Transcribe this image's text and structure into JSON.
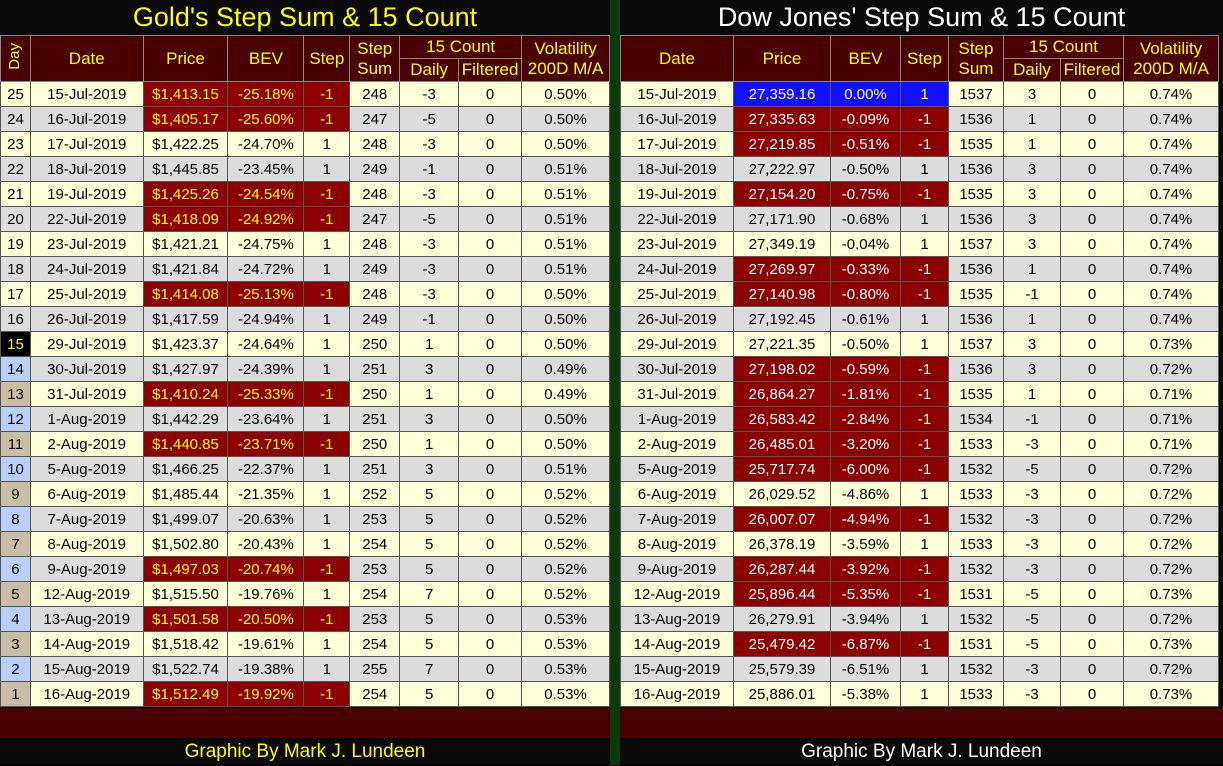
{
  "gold": {
    "title": "Gold's Step Sum & 15 Count",
    "footer": "Graphic By Mark J. Lundeen",
    "headers": {
      "day": "Day",
      "date": "Date",
      "price": "Price",
      "bev": "BEV",
      "step": "Step",
      "step_sum": "Step Sum",
      "count15": "15 Count",
      "daily": "Daily",
      "filtered": "Filtered",
      "volatility": "Volatility 200D M/A"
    },
    "rows": [
      [
        "25",
        "15-Jul-2019",
        "$1,413.15",
        "-25.18%",
        "-1",
        "248",
        "-3",
        "0",
        "0.50%"
      ],
      [
        "24",
        "16-Jul-2019",
        "$1,405.17",
        "-25.60%",
        "-1",
        "247",
        "-5",
        "0",
        "0.50%"
      ],
      [
        "23",
        "17-Jul-2019",
        "$1,422.25",
        "-24.70%",
        "1",
        "248",
        "-3",
        "0",
        "0.50%"
      ],
      [
        "22",
        "18-Jul-2019",
        "$1,445.85",
        "-23.45%",
        "1",
        "249",
        "-1",
        "0",
        "0.51%"
      ],
      [
        "21",
        "19-Jul-2019",
        "$1,425.26",
        "-24.54%",
        "-1",
        "248",
        "-3",
        "0",
        "0.51%"
      ],
      [
        "20",
        "22-Jul-2019",
        "$1,418.09",
        "-24.92%",
        "-1",
        "247",
        "-5",
        "0",
        "0.51%"
      ],
      [
        "19",
        "23-Jul-2019",
        "$1,421.21",
        "-24.75%",
        "1",
        "248",
        "-3",
        "0",
        "0.51%"
      ],
      [
        "18",
        "24-Jul-2019",
        "$1,421.84",
        "-24.72%",
        "1",
        "249",
        "-3",
        "0",
        "0.51%"
      ],
      [
        "17",
        "25-Jul-2019",
        "$1,414.08",
        "-25.13%",
        "-1",
        "248",
        "-3",
        "0",
        "0.50%"
      ],
      [
        "16",
        "26-Jul-2019",
        "$1,417.59",
        "-24.94%",
        "1",
        "249",
        "-1",
        "0",
        "0.50%"
      ],
      [
        "15",
        "29-Jul-2019",
        "$1,423.37",
        "-24.64%",
        "1",
        "250",
        "1",
        "0",
        "0.50%"
      ],
      [
        "14",
        "30-Jul-2019",
        "$1,427.97",
        "-24.39%",
        "1",
        "251",
        "3",
        "0",
        "0.49%"
      ],
      [
        "13",
        "31-Jul-2019",
        "$1,410.24",
        "-25.33%",
        "-1",
        "250",
        "1",
        "0",
        "0.49%"
      ],
      [
        "12",
        "1-Aug-2019",
        "$1,442.29",
        "-23.64%",
        "1",
        "251",
        "3",
        "0",
        "0.50%"
      ],
      [
        "11",
        "2-Aug-2019",
        "$1,440.85",
        "-23.71%",
        "-1",
        "250",
        "1",
        "0",
        "0.50%"
      ],
      [
        "10",
        "5-Aug-2019",
        "$1,466.25",
        "-22.37%",
        "1",
        "251",
        "3",
        "0",
        "0.51%"
      ],
      [
        "9",
        "6-Aug-2019",
        "$1,485.44",
        "-21.35%",
        "1",
        "252",
        "5",
        "0",
        "0.52%"
      ],
      [
        "8",
        "7-Aug-2019",
        "$1,499.07",
        "-20.63%",
        "1",
        "253",
        "5",
        "0",
        "0.52%"
      ],
      [
        "7",
        "8-Aug-2019",
        "$1,502.80",
        "-20.43%",
        "1",
        "254",
        "5",
        "0",
        "0.52%"
      ],
      [
        "6",
        "9-Aug-2019",
        "$1,497.03",
        "-20.74%",
        "-1",
        "253",
        "5",
        "0",
        "0.52%"
      ],
      [
        "5",
        "12-Aug-2019",
        "$1,515.50",
        "-19.76%",
        "1",
        "254",
        "7",
        "0",
        "0.52%"
      ],
      [
        "4",
        "13-Aug-2019",
        "$1,501.58",
        "-20.50%",
        "-1",
        "253",
        "5",
        "0",
        "0.53%"
      ],
      [
        "3",
        "14-Aug-2019",
        "$1,518.42",
        "-19.61%",
        "1",
        "254",
        "5",
        "0",
        "0.53%"
      ],
      [
        "2",
        "15-Aug-2019",
        "$1,522.74",
        "-19.38%",
        "1",
        "255",
        "7",
        "0",
        "0.53%"
      ],
      [
        "1",
        "16-Aug-2019",
        "$1,512.49",
        "-19.92%",
        "-1",
        "254",
        "5",
        "0",
        "0.53%"
      ]
    ]
  },
  "dow": {
    "title": "Dow Jones' Step Sum & 15 Count",
    "footer": "Graphic By Mark J. Lundeen",
    "headers": {
      "date": "Date",
      "price": "Price",
      "bev": "BEV",
      "step": "Step",
      "step_sum": "Step Sum",
      "count15": "15 Count",
      "daily": "Daily",
      "filtered": "Filtered",
      "volatility": "Volatility 200D M/A"
    },
    "rows": [
      [
        "15-Jul-2019",
        "27,359.16",
        "0.00%",
        "1",
        "1537",
        "3",
        "0",
        "0.74%"
      ],
      [
        "16-Jul-2019",
        "27,335.63",
        "-0.09%",
        "-1",
        "1536",
        "1",
        "0",
        "0.74%"
      ],
      [
        "17-Jul-2019",
        "27,219.85",
        "-0.51%",
        "-1",
        "1535",
        "1",
        "0",
        "0.74%"
      ],
      [
        "18-Jul-2019",
        "27,222.97",
        "-0.50%",
        "1",
        "1536",
        "3",
        "0",
        "0.74%"
      ],
      [
        "19-Jul-2019",
        "27,154.20",
        "-0.75%",
        "-1",
        "1535",
        "3",
        "0",
        "0.74%"
      ],
      [
        "22-Jul-2019",
        "27,171.90",
        "-0.68%",
        "1",
        "1536",
        "3",
        "0",
        "0.74%"
      ],
      [
        "23-Jul-2019",
        "27,349.19",
        "-0.04%",
        "1",
        "1537",
        "3",
        "0",
        "0.74%"
      ],
      [
        "24-Jul-2019",
        "27,269.97",
        "-0.33%",
        "-1",
        "1536",
        "1",
        "0",
        "0.74%"
      ],
      [
        "25-Jul-2019",
        "27,140.98",
        "-0.80%",
        "-1",
        "1535",
        "-1",
        "0",
        "0.74%"
      ],
      [
        "26-Jul-2019",
        "27,192.45",
        "-0.61%",
        "1",
        "1536",
        "1",
        "0",
        "0.74%"
      ],
      [
        "29-Jul-2019",
        "27,221.35",
        "-0.50%",
        "1",
        "1537",
        "3",
        "0",
        "0.73%"
      ],
      [
        "30-Jul-2019",
        "27,198.02",
        "-0.59%",
        "-1",
        "1536",
        "3",
        "0",
        "0.72%"
      ],
      [
        "31-Jul-2019",
        "26,864.27",
        "-1.81%",
        "-1",
        "1535",
        "1",
        "0",
        "0.71%"
      ],
      [
        "1-Aug-2019",
        "26,583.42",
        "-2.84%",
        "-1",
        "1534",
        "-1",
        "0",
        "0.71%"
      ],
      [
        "2-Aug-2019",
        "26,485.01",
        "-3.20%",
        "-1",
        "1533",
        "-3",
        "0",
        "0.71%"
      ],
      [
        "5-Aug-2019",
        "25,717.74",
        "-6.00%",
        "-1",
        "1532",
        "-5",
        "0",
        "0.72%"
      ],
      [
        "6-Aug-2019",
        "26,029.52",
        "-4.86%",
        "1",
        "1533",
        "-3",
        "0",
        "0.72%"
      ],
      [
        "7-Aug-2019",
        "26,007.07",
        "-4.94%",
        "-1",
        "1532",
        "-3",
        "0",
        "0.72%"
      ],
      [
        "8-Aug-2019",
        "26,378.19",
        "-3.59%",
        "1",
        "1533",
        "-3",
        "0",
        "0.72%"
      ],
      [
        "9-Aug-2019",
        "26,287.44",
        "-3.92%",
        "-1",
        "1532",
        "-3",
        "0",
        "0.72%"
      ],
      [
        "12-Aug-2019",
        "25,896.44",
        "-5.35%",
        "-1",
        "1531",
        "-5",
        "0",
        "0.73%"
      ],
      [
        "13-Aug-2019",
        "26,279.91",
        "-3.94%",
        "1",
        "1532",
        "-5",
        "0",
        "0.72%"
      ],
      [
        "14-Aug-2019",
        "25,479.42",
        "-6.87%",
        "-1",
        "1531",
        "-5",
        "0",
        "0.73%"
      ],
      [
        "15-Aug-2019",
        "25,579.39",
        "-6.51%",
        "1",
        "1532",
        "-3",
        "0",
        "0.72%"
      ],
      [
        "16-Aug-2019",
        "25,886.01",
        "-5.38%",
        "1",
        "1533",
        "-3",
        "0",
        "0.73%"
      ]
    ]
  },
  "colors": {
    "header_bg": "#4a0000",
    "negative_bg": "#8b0000",
    "new_high_bg": "#1010ff",
    "row_odd": "#ffffd8",
    "row_even": "#dcdcdc"
  }
}
